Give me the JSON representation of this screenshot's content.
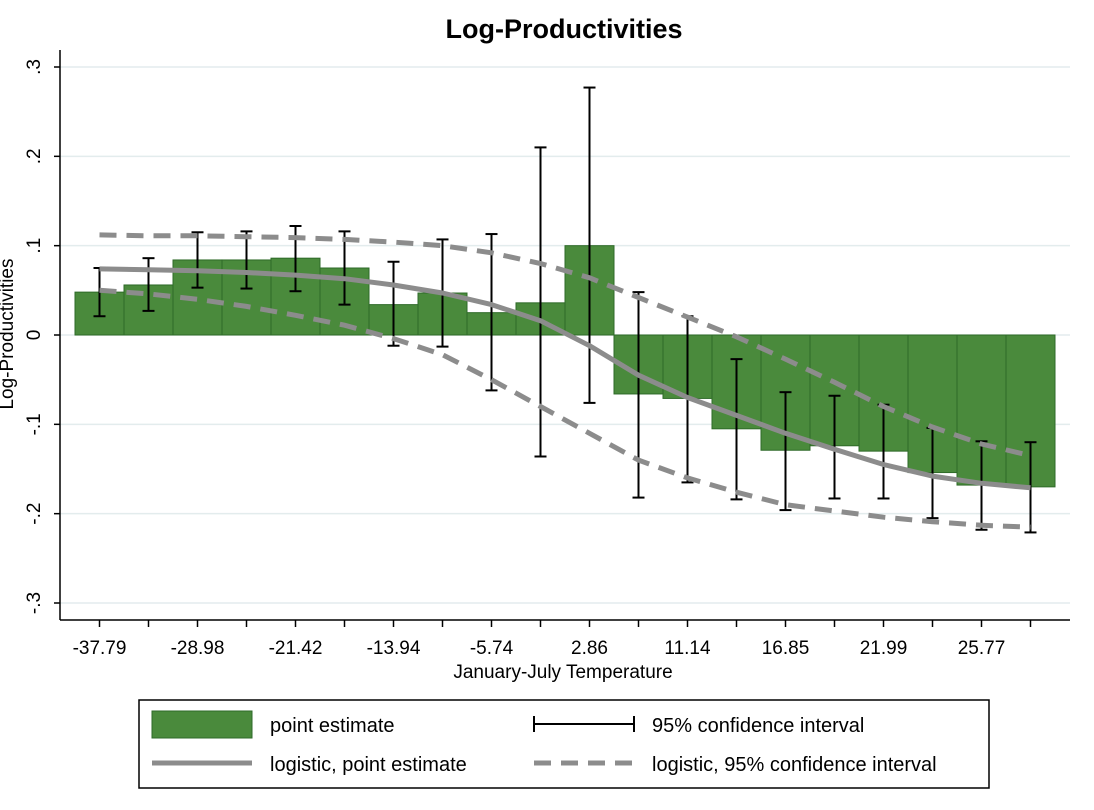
{
  "chart_data": {
    "type": "bar",
    "title": "Log-Productivities",
    "xlabel": "January-July Temperature",
    "ylabel": "Log-Productivities",
    "ylim": [
      -0.3,
      0.3
    ],
    "yticks": [
      -0.3,
      -0.2,
      -0.1,
      0,
      0.1,
      0.2,
      0.3
    ],
    "ytick_labels": [
      "-.3",
      "-.2",
      "-.1",
      "0",
      ".1",
      ".2",
      ".3"
    ],
    "grid": true,
    "legend_position": "bottom",
    "x_tick_labels": [
      "-37.79",
      "-28.98",
      "-21.42",
      "-13.94",
      "-5.74",
      "2.86",
      "11.14",
      "16.85",
      "21.99",
      "25.77"
    ],
    "bins": 20,
    "series": [
      {
        "name": "point estimate",
        "kind": "bar",
        "color": "#4a8a3c",
        "values": [
          0.048,
          0.056,
          0.084,
          0.084,
          0.086,
          0.075,
          0.034,
          0.047,
          0.025,
          0.036,
          0.1,
          -0.066,
          -0.071,
          -0.105,
          -0.129,
          -0.124,
          -0.13,
          -0.154,
          -0.168,
          -0.17
        ]
      },
      {
        "name": "95% confidence interval",
        "kind": "errorbar",
        "color": "#000000",
        "lower": [
          0.021,
          0.027,
          0.053,
          0.052,
          0.049,
          0.034,
          -0.012,
          -0.013,
          -0.062,
          -0.136,
          -0.076,
          -0.182,
          -0.165,
          -0.184,
          -0.196,
          -0.183,
          -0.183,
          -0.205,
          -0.218,
          -0.221
        ],
        "upper": [
          0.075,
          0.086,
          0.115,
          0.116,
          0.122,
          0.116,
          0.082,
          0.107,
          0.113,
          0.21,
          0.277,
          0.048,
          0.021,
          -0.027,
          -0.064,
          -0.068,
          -0.078,
          -0.104,
          -0.119,
          -0.12
        ]
      },
      {
        "name": "logistic, point estimate",
        "kind": "line",
        "color": "#8c8c8c",
        "values": [
          0.074,
          0.073,
          0.072,
          0.07,
          0.067,
          0.063,
          0.056,
          0.047,
          0.034,
          0.016,
          -0.012,
          -0.045,
          -0.07,
          -0.09,
          -0.11,
          -0.128,
          -0.145,
          -0.158,
          -0.166,
          -0.171
        ]
      },
      {
        "name": "logistic, 95% confidence interval",
        "kind": "dashed-line",
        "color": "#8c8c8c",
        "lower": [
          0.05,
          0.046,
          0.04,
          0.032,
          0.022,
          0.011,
          -0.004,
          -0.022,
          -0.05,
          -0.08,
          -0.11,
          -0.14,
          -0.16,
          -0.176,
          -0.19,
          -0.197,
          -0.204,
          -0.209,
          -0.213,
          -0.215
        ],
        "upper": [
          0.112,
          0.111,
          0.111,
          0.11,
          0.109,
          0.107,
          0.104,
          0.1,
          0.092,
          0.08,
          0.064,
          0.042,
          0.02,
          -0.002,
          -0.027,
          -0.053,
          -0.08,
          -0.103,
          -0.122,
          -0.135
        ]
      }
    ]
  }
}
